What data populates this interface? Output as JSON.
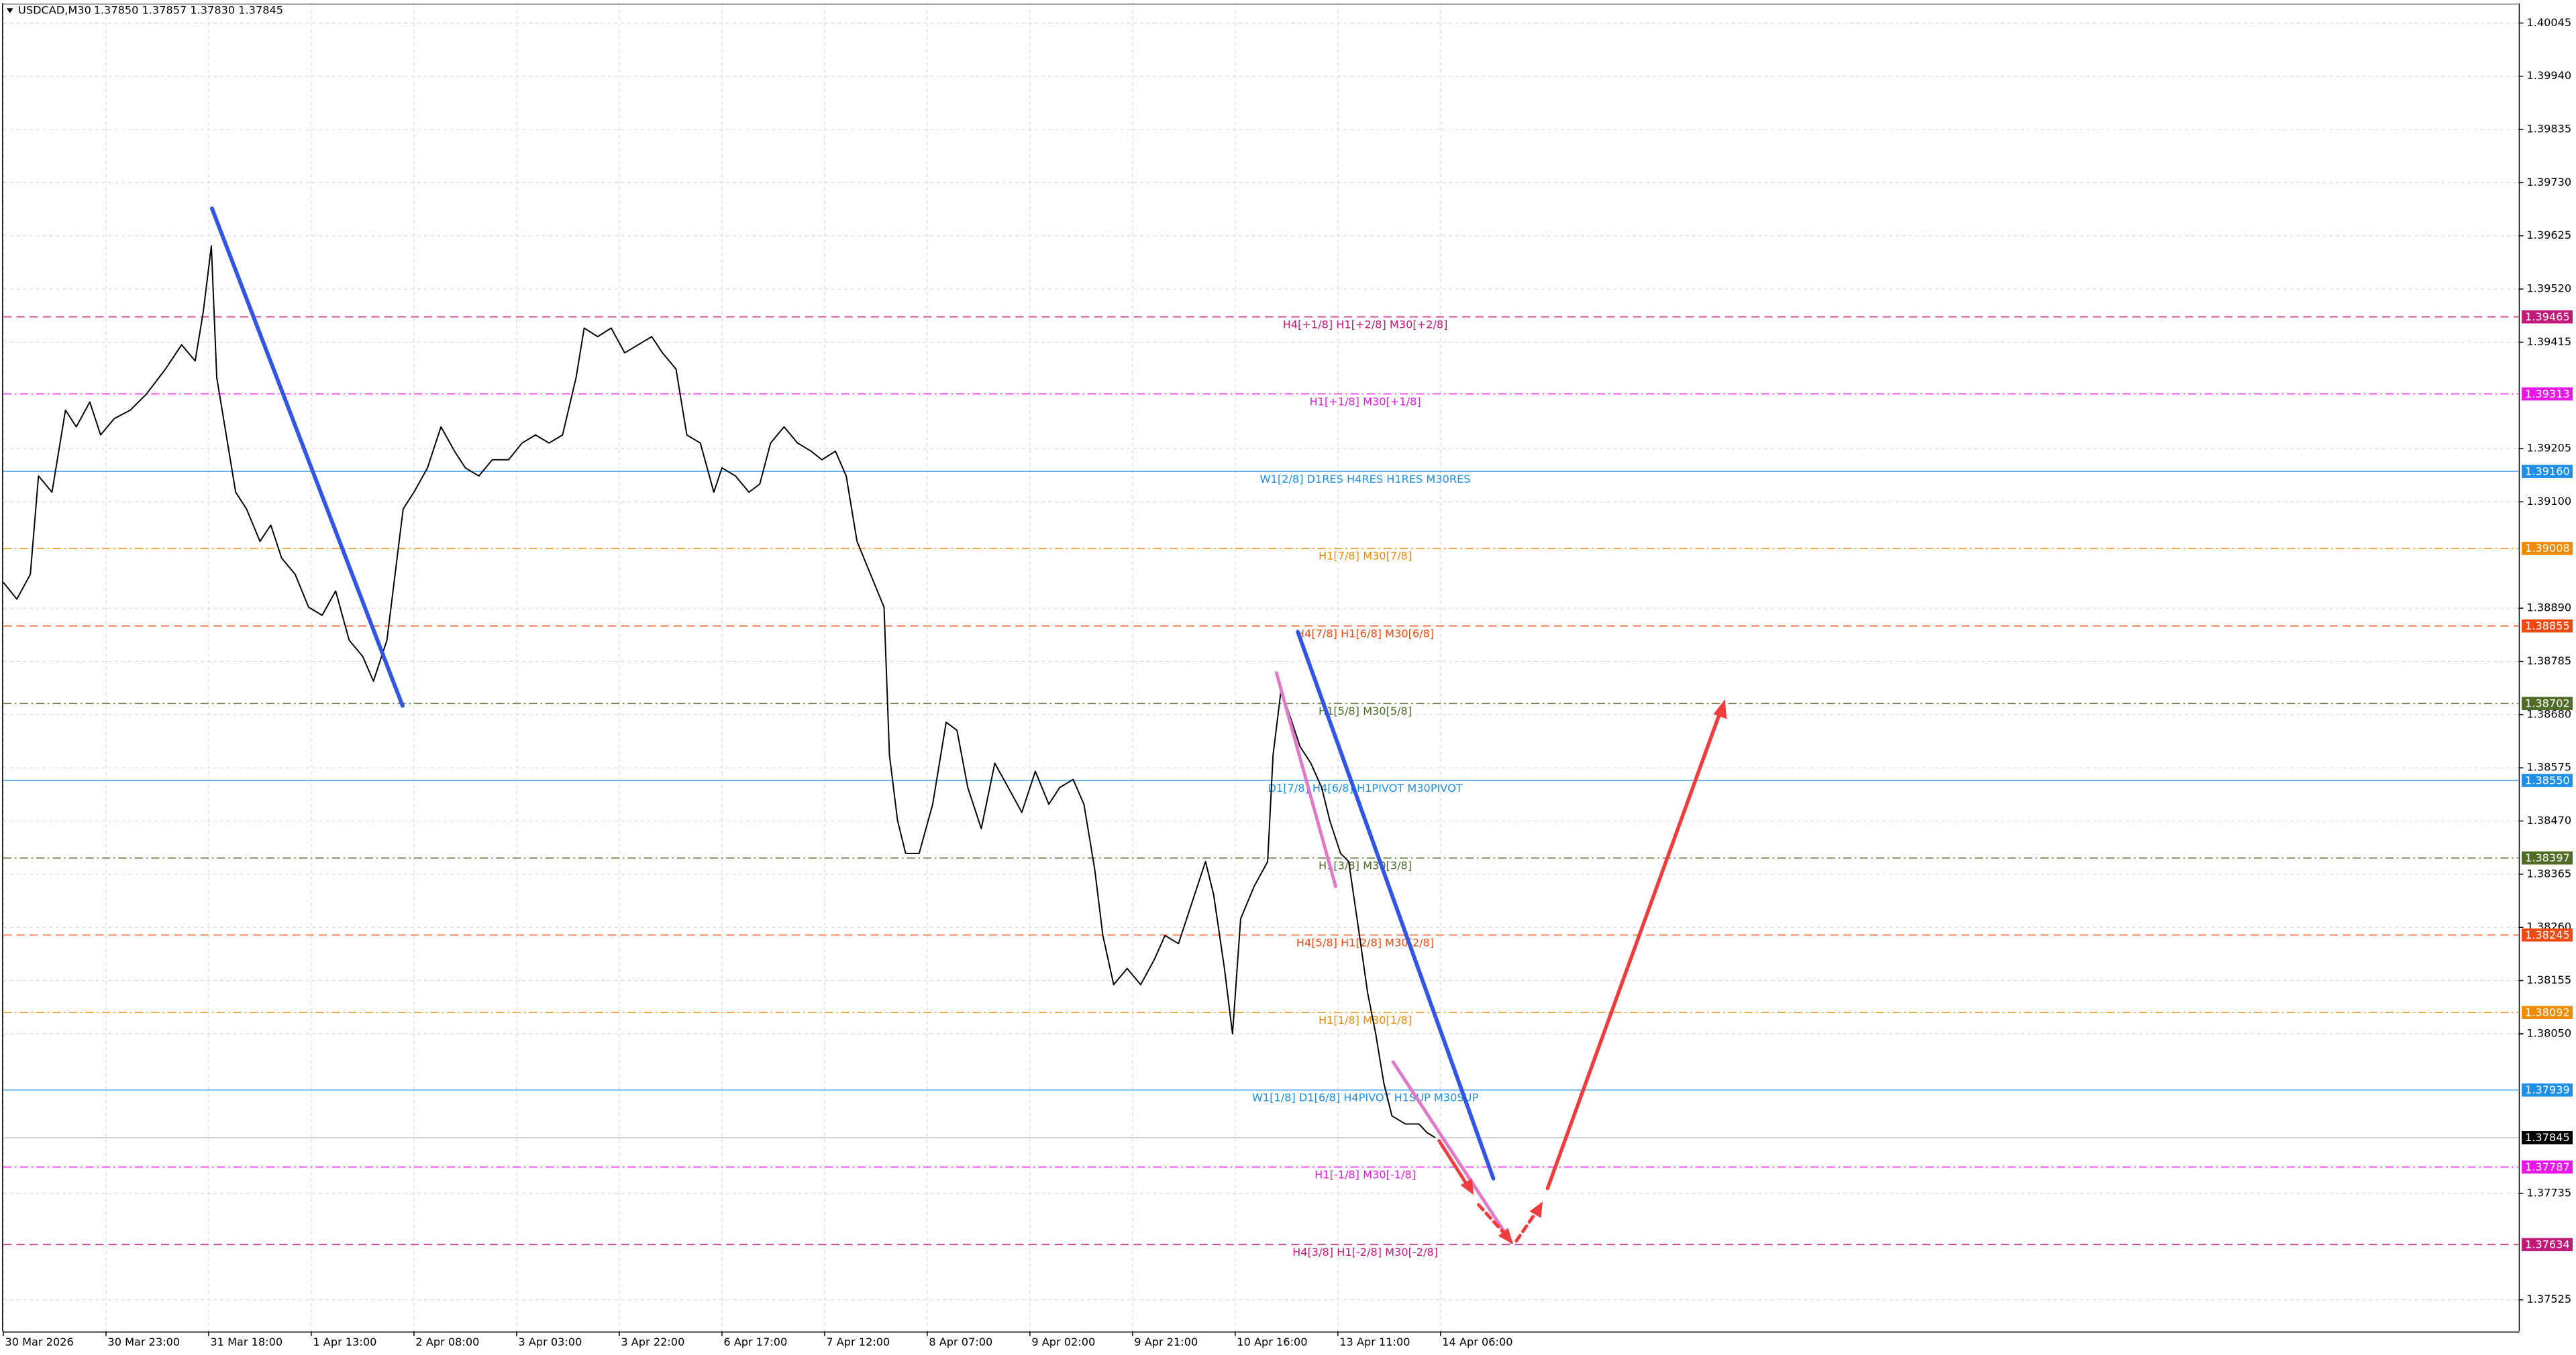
{
  "chart_data": {
    "type": "line",
    "title": "USDCAD,M30",
    "quote": "1.37850 1.37857 1.37830 1.37845",
    "color": "#000000",
    "grid": true,
    "xlim": [
      0,
      931
    ],
    "ylim": [
      1.37463,
      1.40084
    ],
    "xticks": [
      {
        "value": 0,
        "label": "30 Mar 2026"
      },
      {
        "value": 38,
        "label": "30 Mar 23:00"
      },
      {
        "value": 76,
        "label": "31 Mar 18:00"
      },
      {
        "value": 114,
        "label": "1 Apr 13:00"
      },
      {
        "value": 152,
        "label": "2 Apr 08:00"
      },
      {
        "value": 190,
        "label": "3 Apr 03:00"
      },
      {
        "value": 228,
        "label": "3 Apr 22:00"
      },
      {
        "value": 266,
        "label": "6 Apr 17:00"
      },
      {
        "value": 304,
        "label": "7 Apr 12:00"
      },
      {
        "value": 342,
        "label": "8 Apr 07:00"
      },
      {
        "value": 380,
        "label": "9 Apr 02:00"
      },
      {
        "value": 418,
        "label": "9 Apr 21:00"
      },
      {
        "value": 456,
        "label": "10 Apr 16:00"
      },
      {
        "value": 494,
        "label": "13 Apr 11:00"
      },
      {
        "value": 532,
        "label": "14 Apr 06:00"
      }
    ],
    "yticks": [
      1.40045,
      {
        "value": 1.3994,
        "label": "1.39940"
      },
      1.39835,
      {
        "value": 1.3973,
        "label": "1.39730"
      },
      1.39625,
      {
        "value": 1.3952,
        "label": "1.39520"
      },
      1.39415,
      1.39205,
      {
        "value": 1.391,
        "label": "1.39100"
      },
      {
        "value": 1.3889,
        "label": "1.38890"
      },
      1.38785,
      {
        "value": 1.3868,
        "label": "1.38680"
      },
      1.38575,
      {
        "value": 1.3847,
        "label": "1.38470"
      },
      1.38365,
      {
        "value": 1.3826,
        "label": "1.38260"
      },
      1.38155,
      {
        "value": 1.3805,
        "label": "1.38050"
      },
      1.37735,
      1.37525
    ],
    "x": [
      0,
      5,
      10,
      13,
      18,
      23,
      27,
      32,
      36,
      41,
      47,
      53,
      60,
      66,
      71,
      74,
      77,
      79,
      83,
      86,
      90,
      95,
      99,
      103,
      108,
      113,
      118,
      123,
      128,
      133,
      137,
      142,
      145,
      148,
      152,
      157,
      162,
      167,
      171,
      176,
      181,
      187,
      192,
      197,
      202,
      207,
      212,
      215,
      220,
      225,
      230,
      235,
      240,
      244,
      249,
      253,
      258,
      263,
      266,
      271,
      276,
      280,
      284,
      289,
      294,
      299,
      303,
      308,
      312,
      316,
      321,
      326,
      328,
      331,
      334,
      339,
      344,
      349,
      353,
      357,
      362,
      367,
      372,
      377,
      382,
      387,
      391,
      396,
      400,
      404,
      407,
      411,
      416,
      421,
      426,
      430,
      435,
      440,
      445,
      448,
      452,
      455,
      458,
      463,
      468,
      470,
      473,
      477,
      480,
      484,
      488,
      491,
      495,
      498,
      502,
      505,
      508,
      511,
      514,
      519,
      524,
      527,
      530
    ],
    "values": [
      1.38941,
      1.38908,
      1.38957,
      1.39151,
      1.39119,
      1.39281,
      1.39248,
      1.39297,
      1.39232,
      1.39264,
      1.39281,
      1.39313,
      1.39362,
      1.3941,
      1.39378,
      1.39475,
      1.39605,
      1.39345,
      1.39216,
      1.39119,
      1.39086,
      1.39022,
      1.39054,
      1.38989,
      1.38957,
      1.38892,
      1.38876,
      1.38924,
      1.38827,
      1.38795,
      1.38746,
      1.38827,
      1.38957,
      1.39086,
      1.39119,
      1.39167,
      1.39248,
      1.392,
      1.39167,
      1.39151,
      1.39183,
      1.39183,
      1.39216,
      1.39232,
      1.39216,
      1.39232,
      1.39345,
      1.39443,
      1.39426,
      1.39443,
      1.39394,
      1.3941,
      1.39426,
      1.39394,
      1.39362,
      1.39232,
      1.39216,
      1.39119,
      1.39167,
      1.39151,
      1.39119,
      1.39135,
      1.39216,
      1.39248,
      1.39216,
      1.392,
      1.39183,
      1.392,
      1.39151,
      1.39022,
      1.38957,
      1.38892,
      1.386,
      1.38471,
      1.38406,
      1.38406,
      1.38503,
      1.38665,
      1.38649,
      1.38536,
      1.38455,
      1.38584,
      1.38536,
      1.38487,
      1.38568,
      1.38503,
      1.38536,
      1.38552,
      1.38503,
      1.38374,
      1.38244,
      1.38147,
      1.38179,
      1.38147,
      1.38196,
      1.38244,
      1.38228,
      1.38309,
      1.3839,
      1.38325,
      1.38179,
      1.3805,
      1.38277,
      1.38341,
      1.3839,
      1.386,
      1.3873,
      1.38665,
      1.38617,
      1.38584,
      1.38536,
      1.38471,
      1.38406,
      1.3839,
      1.38244,
      1.38131,
      1.3805,
      1.37953,
      1.37888,
      1.37872,
      1.37872,
      1.37855,
      1.37845
    ],
    "last": {
      "value": 1.37845,
      "color": "#000000"
    },
    "levels": [
      {
        "label": "H4[+1/8] H1[+2/8] M30[+2/8]",
        "value": 1.39465,
        "value_label": "1.39465",
        "color": "#c2187a",
        "style": "dash"
      },
      {
        "label": "H1[+1/8] M30[+1/8]",
        "value": 1.39313,
        "value_label": "1.39313",
        "color": "#e817e8",
        "style": "dashdot"
      },
      {
        "label": "W1[2/8] D1RES H4RES H1RES M30RES",
        "value": 1.3916,
        "value_label": "1.39160",
        "color": "#1e8fe6",
        "style": "solid"
      },
      {
        "label": "H1[7/8] M30[7/8]",
        "value": 1.39008,
        "value_label": "1.39008",
        "color": "#f08a00",
        "style": "dashdot"
      },
      {
        "label": "H4[7/8] H1[6/8] M30[6/8]",
        "value": 1.38855,
        "value_label": "1.38855",
        "color": "#f04a14",
        "style": "dash"
      },
      {
        "label": "H1[5/8] M30[5/8]",
        "value": 1.38702,
        "value_label": "1.38702",
        "color": "#4f6b26",
        "style": "dashdot"
      },
      {
        "label": "D1[7/8] H4[6/8] H1PIVOT M30PIVOT",
        "value": 1.3855,
        "value_label": "1.38550",
        "color": "#1e8fe6",
        "style": "solid"
      },
      {
        "label": "H1[3/8] M30[3/8]",
        "value": 1.38397,
        "value_label": "1.38397",
        "color": "#4f6b26",
        "style": "dashdot"
      },
      {
        "label": "H4[5/8] H1[2/8] M30[2/8]",
        "value": 1.38245,
        "value_label": "1.38245",
        "color": "#f04a14",
        "style": "dash"
      },
      {
        "label": "H1[1/8] M30[1/8]",
        "value": 1.38092,
        "value_label": "1.38092",
        "color": "#f08a00",
        "style": "dashdot"
      },
      {
        "label": "W1[1/8] D1[6/8] H4PIVOT H1SUP M30SUP",
        "value": 1.37939,
        "value_label": "1.37939",
        "color": "#1e8fe6",
        "style": "solid"
      },
      {
        "label": "H1[-1/8] M30[-1/8]",
        "value": 1.37787,
        "value_label": "1.37787",
        "color": "#e817e8",
        "style": "dashdot"
      },
      {
        "label": "H4[3/8] H1[-2/8] M30[-2/8]",
        "value": 1.37634,
        "value_label": "1.37634",
        "color": "#c2187a",
        "style": "dash"
      }
    ]
  }
}
